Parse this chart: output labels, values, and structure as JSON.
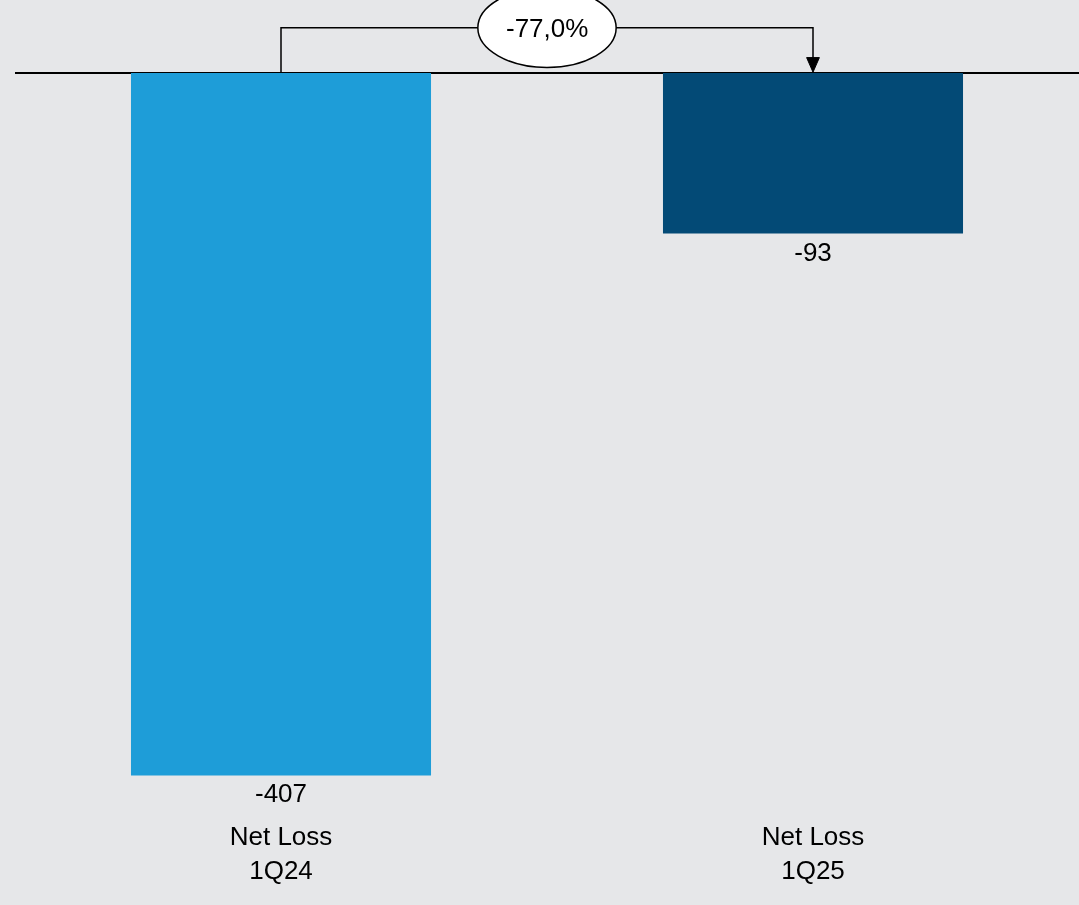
{
  "chart_data": {
    "type": "bar",
    "categories": [
      "Net Loss\n1Q24",
      "Net Loss\n1Q25"
    ],
    "values": [
      -407,
      -93
    ],
    "colors": [
      "#1e9dd8",
      "#034a76"
    ],
    "data_labels": true,
    "grid": false,
    "annotations": [
      "-77,0%"
    ]
  }
}
